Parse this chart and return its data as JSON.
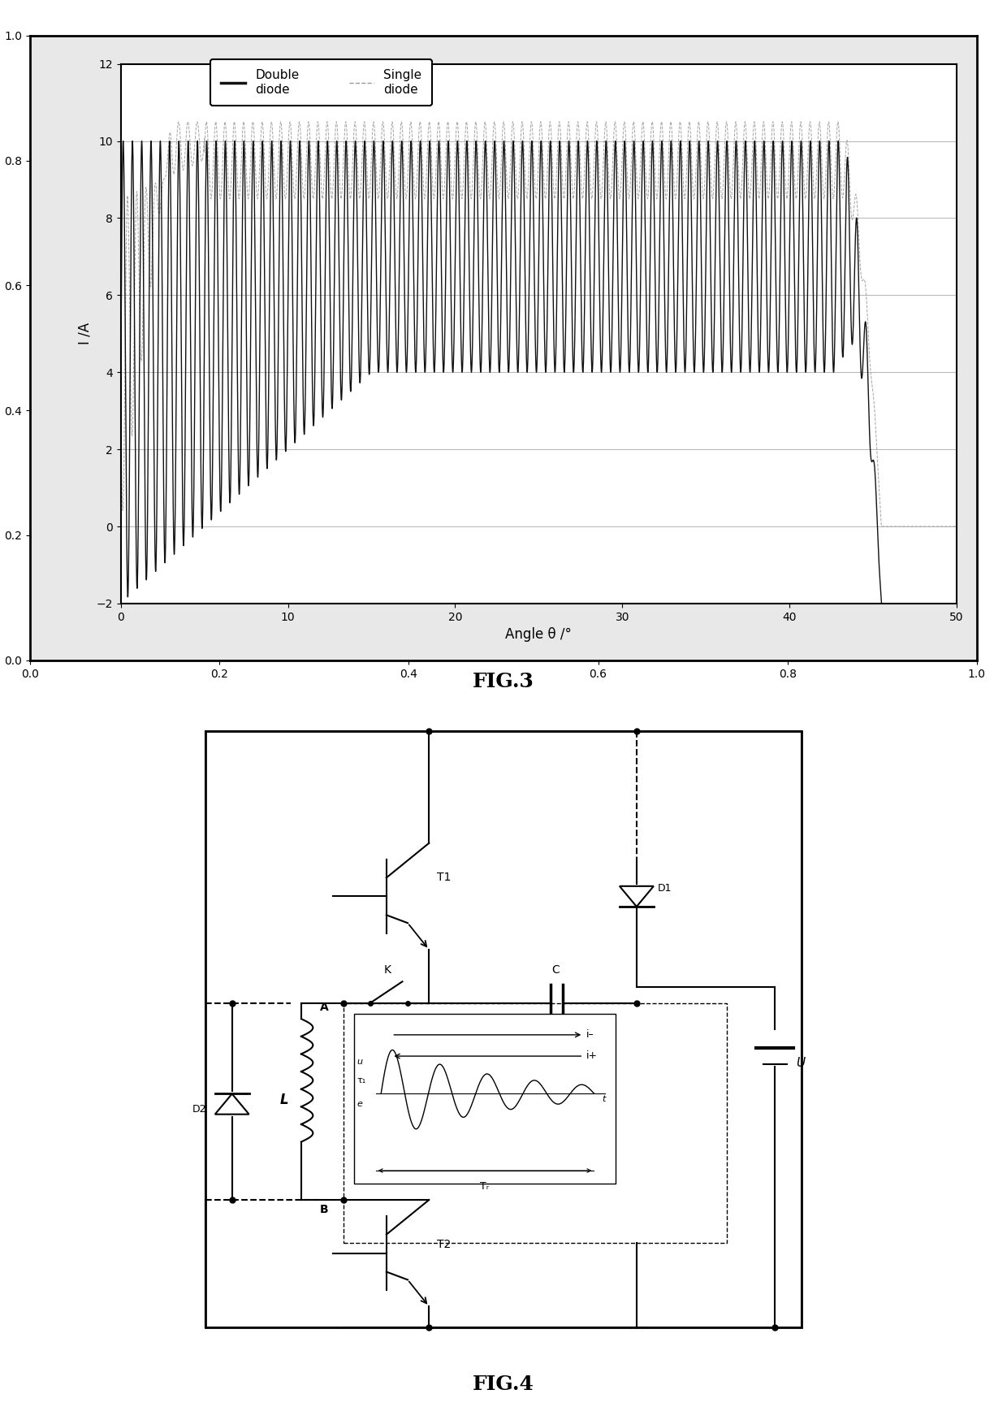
{
  "fig3": {
    "xlabel": "Angle θ /°",
    "ylabel": "I /A",
    "xlim": [
      0,
      50
    ],
    "ylim": [
      -2,
      12
    ],
    "xticks": [
      0,
      10,
      20,
      30,
      40,
      50
    ],
    "yticks": [
      -2,
      0,
      2,
      4,
      6,
      8,
      10,
      12
    ],
    "legend_double": "Double\ndiode",
    "legend_single": "Single\ndiode",
    "double_color": "#111111",
    "single_color": "#999999",
    "bg_color": "#ffffff",
    "fig3_label": "FIG.3",
    "fig4_label": "FIG.4",
    "outer_bg": "#e8e8e8"
  },
  "circuit": {
    "bg_color": "#ffffff",
    "line_color": "#000000"
  }
}
